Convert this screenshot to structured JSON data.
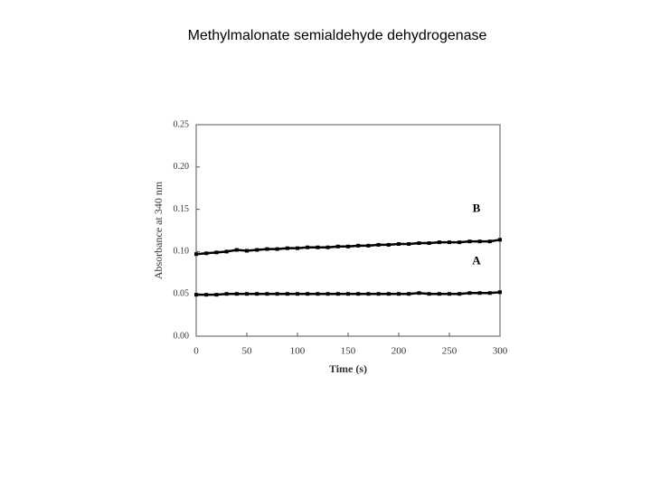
{
  "chart_data": {
    "type": "line",
    "title": "Methylmalonate semialdehyde dehydrogenase",
    "xlabel": "Time (s)",
    "ylabel": "Absorbance at 340 nm",
    "x": [
      0,
      10,
      20,
      30,
      40,
      50,
      60,
      70,
      80,
      90,
      100,
      110,
      120,
      130,
      140,
      150,
      160,
      170,
      180,
      190,
      200,
      210,
      220,
      230,
      240,
      250,
      260,
      270,
      280,
      290,
      300
    ],
    "series": [
      {
        "name": "B",
        "color": "#000000",
        "values": [
          0.097,
          0.098,
          0.099,
          0.1,
          0.102,
          0.101,
          0.102,
          0.103,
          0.103,
          0.104,
          0.104,
          0.105,
          0.105,
          0.105,
          0.106,
          0.106,
          0.107,
          0.107,
          0.108,
          0.108,
          0.109,
          0.109,
          0.11,
          0.11,
          0.111,
          0.111,
          0.111,
          0.112,
          0.112,
          0.112,
          0.114
        ]
      },
      {
        "name": "A",
        "color": "#000000",
        "values": [
          0.049,
          0.049,
          0.049,
          0.05,
          0.05,
          0.05,
          0.05,
          0.05,
          0.05,
          0.05,
          0.05,
          0.05,
          0.05,
          0.05,
          0.05,
          0.05,
          0.05,
          0.05,
          0.05,
          0.05,
          0.05,
          0.05,
          0.051,
          0.05,
          0.05,
          0.05,
          0.05,
          0.051,
          0.051,
          0.051,
          0.052
        ]
      }
    ],
    "xlim": [
      0,
      300
    ],
    "xticks": [
      0,
      50,
      100,
      150,
      200,
      250,
      300
    ],
    "ylim": [
      0,
      0.25
    ],
    "yticks": [
      {
        "value": 0,
        "label": "0.00"
      },
      {
        "value": 0.05,
        "label": "0.05"
      },
      {
        "value": 0.1,
        "label": "0.10"
      },
      {
        "value": 0.15,
        "label": "0.15"
      },
      {
        "value": 0.2,
        "label": "0.20"
      },
      {
        "value": 0.25,
        "label": "0.25"
      }
    ]
  }
}
